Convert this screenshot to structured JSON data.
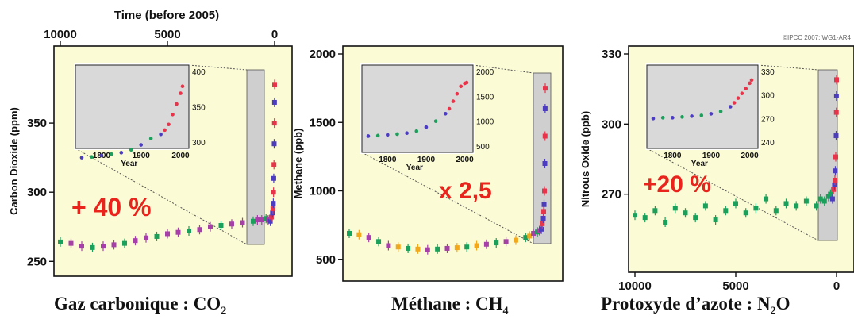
{
  "top_axis": {
    "label": "Time (before 2005)",
    "ticks": [
      "10000",
      "5000",
      "0"
    ]
  },
  "bottom_axis": {
    "ticks": [
      "10000",
      "5000",
      "0"
    ]
  },
  "copyright": "©IPCC 2007: WG1-AR4",
  "captions": {
    "co2": {
      "text": "Gaz carbonique : CO",
      "sub": "2"
    },
    "ch4": {
      "text": "Méthane : CH",
      "sub": "4"
    },
    "n2o": {
      "text": "Protoxyde d’azote : N",
      "sub": "2",
      "tail": "O"
    }
  },
  "colors": {
    "panel_bg": "#fbfbd5",
    "inset_bg": "#d9d9d9",
    "annotation": "#e8241c",
    "series": [
      "#a63fa8",
      "#1aa05a",
      "#4b3cc0",
      "#e8344a",
      "#f2a81c"
    ]
  },
  "chart_data": [
    {
      "type": "scatter",
      "ylabel": "Carbon Dioxide (ppm)",
      "y_ticks": [
        "250",
        "300",
        "350"
      ],
      "ylim": [
        245,
        400
      ],
      "xlim": [
        10000,
        0
      ],
      "annotation": "+ 40 %",
      "series": [
        {
          "x": [
            10000,
            9500,
            9000,
            8500,
            8000,
            7500,
            7000,
            6500,
            6000,
            5500,
            5000,
            4500,
            4000,
            3500,
            3000,
            2500,
            2000,
            1500,
            1000,
            800,
            600,
            400,
            300,
            200,
            150,
            100,
            80,
            60,
            50,
            40,
            30,
            20,
            10,
            5,
            0
          ],
          "y": [
            264,
            263,
            261,
            260,
            261,
            262,
            263,
            265,
            267,
            268,
            270,
            271,
            272,
            273,
            275,
            276,
            277,
            278,
            279,
            280,
            280,
            281,
            280,
            279,
            282,
            285,
            288,
            292,
            300,
            310,
            320,
            335,
            350,
            365,
            378
          ]
        }
      ],
      "inset": {
        "ticks": [
          "300",
          "350",
          "400"
        ],
        "x_ticks": [
          "1800",
          "1900",
          "2000"
        ],
        "xlabel": "Year",
        "x": [
          1750,
          1775,
          1800,
          1825,
          1850,
          1875,
          1900,
          1925,
          1950,
          1960,
          1970,
          1980,
          1990,
          2000,
          2005
        ],
        "y": [
          278,
          279,
          281,
          283,
          285,
          289,
          296,
          305,
          311,
          317,
          325,
          339,
          354,
          369,
          379
        ]
      }
    },
    {
      "type": "scatter",
      "ylabel": "Methane (ppb)",
      "y_ticks": [
        "500",
        "1000",
        "1500",
        "2000"
      ],
      "ylim": [
        400,
        2000
      ],
      "xlim": [
        10000,
        0
      ],
      "annotation": "x 2,5",
      "series": [
        {
          "x": [
            10000,
            9500,
            9000,
            8500,
            8000,
            7500,
            7000,
            6500,
            6000,
            5500,
            5000,
            4500,
            4000,
            3500,
            3000,
            2500,
            2000,
            1500,
            1000,
            800,
            600,
            400,
            300,
            200,
            150,
            100,
            80,
            60,
            40,
            20,
            10,
            5,
            0
          ],
          "y": [
            690,
            680,
            660,
            630,
            600,
            590,
            580,
            575,
            570,
            575,
            580,
            585,
            590,
            600,
            610,
            620,
            630,
            640,
            660,
            670,
            690,
            700,
            710,
            720,
            760,
            800,
            850,
            900,
            1000,
            1200,
            1400,
            1600,
            1750
          ]
        }
      ],
      "inset": {
        "ticks": [
          "500",
          "1000",
          "1500",
          "2000"
        ],
        "x_ticks": [
          "1800",
          "1900",
          "2000"
        ],
        "xlabel": "Year",
        "x": [
          1750,
          1775,
          1800,
          1825,
          1850,
          1875,
          1900,
          1925,
          1950,
          1960,
          1970,
          1980,
          1990,
          2000,
          2005
        ],
        "y": [
          700,
          710,
          725,
          740,
          760,
          800,
          880,
          1000,
          1150,
          1250,
          1400,
          1550,
          1700,
          1760,
          1775
        ]
      }
    },
    {
      "type": "scatter",
      "ylabel": "Nitrous Oxide (ppb)",
      "y_ticks": [
        "270",
        "300",
        "330"
      ],
      "ylim": [
        240,
        330
      ],
      "xlim": [
        10000,
        0
      ],
      "annotation": "+20 %",
      "series": [
        {
          "x": [
            10000,
            9500,
            9000,
            8500,
            8000,
            7500,
            7000,
            6500,
            6000,
            5500,
            5000,
            4500,
            4000,
            3500,
            3000,
            2500,
            2000,
            1500,
            1000,
            800,
            600,
            400,
            300,
            200,
            150,
            100,
            80,
            60,
            40,
            20,
            10,
            5,
            0
          ],
          "y": [
            261,
            260,
            263,
            258,
            264,
            262,
            260,
            265,
            259,
            263,
            266,
            262,
            264,
            268,
            263,
            266,
            265,
            267,
            265,
            268,
            267,
            269,
            270,
            268,
            272,
            274,
            276,
            280,
            286,
            295,
            305,
            312,
            319
          ]
        }
      ],
      "inset": {
        "ticks": [
          "240",
          "270",
          "300",
          "330"
        ],
        "x_ticks": [
          "1800",
          "1900",
          "2000"
        ],
        "xlabel": "Year",
        "x": [
          1750,
          1775,
          1800,
          1825,
          1850,
          1875,
          1900,
          1925,
          1950,
          1960,
          1970,
          1980,
          1990,
          2000,
          2005
        ],
        "y": [
          270,
          271,
          271,
          272,
          273,
          274,
          276,
          279,
          285,
          290,
          296,
          302,
          308,
          315,
          319
        ]
      }
    }
  ]
}
